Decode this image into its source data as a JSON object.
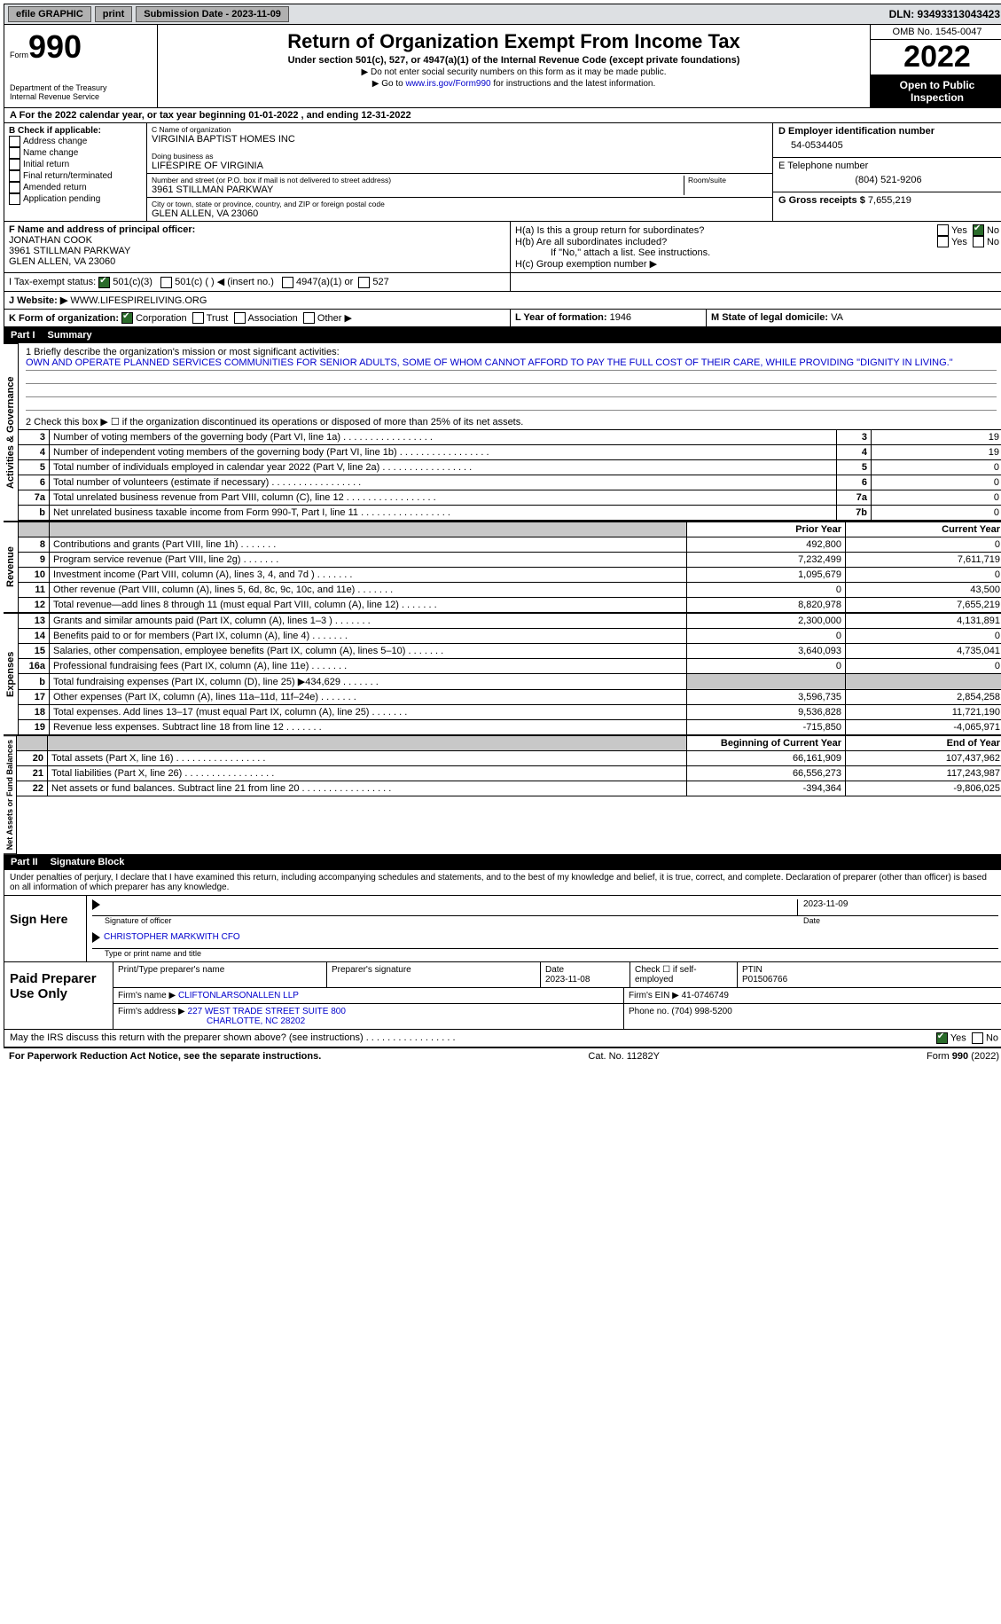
{
  "topbar": {
    "efile": "efile GRAPHIC",
    "print": "print",
    "sub_label": "Submission Date - 2023-11-09",
    "dln": "DLN: 93493313043423"
  },
  "header": {
    "form_word": "Form",
    "form_num": "990",
    "dept": "Department of the Treasury\nInternal Revenue Service",
    "title": "Return of Organization Exempt From Income Tax",
    "sub1": "Under section 501(c), 527, or 4947(a)(1) of the Internal Revenue Code (except private foundations)",
    "sub2": "▶ Do not enter social security numbers on this form as it may be made public.",
    "sub3_pre": "▶ Go to ",
    "sub3_link": "www.irs.gov/Form990",
    "sub3_post": " for instructions and the latest information.",
    "omb": "OMB No. 1545-0047",
    "year": "2022",
    "open": "Open to Public Inspection"
  },
  "rowA": {
    "text_pre": "A  For the 2022 calendar year, or tax year beginning ",
    "begin": "01-01-2022",
    "mid": "   , and ending ",
    "end": "12-31-2022"
  },
  "colB": {
    "hdr": "B Check if applicable:",
    "opts": [
      "Address change",
      "Name change",
      "Initial return",
      "Final return/terminated",
      "Amended return",
      "Application pending"
    ]
  },
  "colC": {
    "name_lbl": "C Name of organization",
    "name": "VIRGINIA BAPTIST HOMES INC",
    "dba_lbl": "Doing business as",
    "dba": "LIFESPIRE OF VIRGINIA",
    "street_lbl": "Number and street (or P.O. box if mail is not delivered to street address)",
    "room_lbl": "Room/suite",
    "street": "3961 STILLMAN PARKWAY",
    "city_lbl": "City or town, state or province, country, and ZIP or foreign postal code",
    "city": "GLEN ALLEN, VA  23060"
  },
  "colD": {
    "ein_lbl": "D Employer identification number",
    "ein": "54-0534405",
    "tel_lbl": "E Telephone number",
    "tel": "(804) 521-9206",
    "gross_lbl": "G Gross receipts $",
    "gross": "7,655,219"
  },
  "rowF": {
    "lbl": "F  Name and address of principal officer:",
    "name": "JONATHAN COOK",
    "addr1": "3961 STILLMAN PARKWAY",
    "addr2": "GLEN ALLEN, VA  23060"
  },
  "rowH": {
    "a_lbl": "H(a)  Is this a group return for subordinates?",
    "b_lbl": "H(b)  Are all subordinates included?",
    "note": "If \"No,\" attach a list. See instructions.",
    "c_lbl": "H(c)  Group exemption number ▶",
    "yes": "Yes",
    "no": "No"
  },
  "rowI": {
    "lbl": "I   Tax-exempt status:",
    "o1": "501(c)(3)",
    "o2": "501(c) (  ) ◀ (insert no.)",
    "o3": "4947(a)(1) or",
    "o4": "527"
  },
  "rowJ": {
    "lbl": "J   Website: ▶",
    "val": "WWW.LIFESPIRELIVING.ORG"
  },
  "rowK": {
    "lbl": "K Form of organization:",
    "o1": "Corporation",
    "o2": "Trust",
    "o3": "Association",
    "o4": "Other ▶",
    "L_lbl": "L  Year of formation:",
    "L_val": "1946",
    "M_lbl": "M  State of legal domicile:",
    "M_val": "VA"
  },
  "part1": {
    "num": "Part I",
    "title": "Summary",
    "q1_lbl": "1   Briefly describe the organization's mission or most significant activities:",
    "q1_val": "OWN AND OPERATE PLANNED SERVICES COMMUNITIES FOR SENIOR ADULTS, SOME OF WHOM CANNOT AFFORD TO PAY THE FULL COST OF THEIR CARE, WHILE PROVIDING \"DIGNITY IN LIVING.\"",
    "q2": "2   Check this box ▶ ☐  if the organization discontinued its operations or disposed of more than 25% of its net assets.",
    "lines_ag": [
      {
        "n": "3",
        "d": "Number of voting members of the governing body (Part VI, line 1a)",
        "b": "3",
        "v": "19"
      },
      {
        "n": "4",
        "d": "Number of independent voting members of the governing body (Part VI, line 1b)",
        "b": "4",
        "v": "19"
      },
      {
        "n": "5",
        "d": "Total number of individuals employed in calendar year 2022 (Part V, line 2a)",
        "b": "5",
        "v": "0"
      },
      {
        "n": "6",
        "d": "Total number of volunteers (estimate if necessary)",
        "b": "6",
        "v": "0"
      },
      {
        "n": "7a",
        "d": "Total unrelated business revenue from Part VIII, column (C), line 12",
        "b": "7a",
        "v": "0"
      },
      {
        "n": "b",
        "d": "Net unrelated business taxable income from Form 990-T, Part I, line 11",
        "b": "7b",
        "v": "0"
      }
    ],
    "col_hdr_prior": "Prior Year",
    "col_hdr_curr": "Current Year",
    "revenue": [
      {
        "n": "8",
        "d": "Contributions and grants (Part VIII, line 1h)",
        "p": "492,800",
        "c": "0"
      },
      {
        "n": "9",
        "d": "Program service revenue (Part VIII, line 2g)",
        "p": "7,232,499",
        "c": "7,611,719"
      },
      {
        "n": "10",
        "d": "Investment income (Part VIII, column (A), lines 3, 4, and 7d )",
        "p": "1,095,679",
        "c": "0"
      },
      {
        "n": "11",
        "d": "Other revenue (Part VIII, column (A), lines 5, 6d, 8c, 9c, 10c, and 11e)",
        "p": "0",
        "c": "43,500"
      },
      {
        "n": "12",
        "d": "Total revenue—add lines 8 through 11 (must equal Part VIII, column (A), line 12)",
        "p": "8,820,978",
        "c": "7,655,219"
      }
    ],
    "expenses": [
      {
        "n": "13",
        "d": "Grants and similar amounts paid (Part IX, column (A), lines 1–3 )",
        "p": "2,300,000",
        "c": "4,131,891"
      },
      {
        "n": "14",
        "d": "Benefits paid to or for members (Part IX, column (A), line 4)",
        "p": "0",
        "c": "0"
      },
      {
        "n": "15",
        "d": "Salaries, other compensation, employee benefits (Part IX, column (A), lines 5–10)",
        "p": "3,640,093",
        "c": "4,735,041"
      },
      {
        "n": "16a",
        "d": "Professional fundraising fees (Part IX, column (A), line 11e)",
        "p": "0",
        "c": "0"
      },
      {
        "n": "b",
        "d": "Total fundraising expenses (Part IX, column (D), line 25) ▶434,629",
        "p": "",
        "c": "",
        "shade": true
      },
      {
        "n": "17",
        "d": "Other expenses (Part IX, column (A), lines 11a–11d, 11f–24e)",
        "p": "3,596,735",
        "c": "2,854,258"
      },
      {
        "n": "18",
        "d": "Total expenses. Add lines 13–17 (must equal Part IX, column (A), line 25)",
        "p": "9,536,828",
        "c": "11,721,190"
      },
      {
        "n": "19",
        "d": "Revenue less expenses. Subtract line 18 from line 12",
        "p": "-715,850",
        "c": "-4,065,971"
      }
    ],
    "col_hdr_begin": "Beginning of Current Year",
    "col_hdr_end": "End of Year",
    "net": [
      {
        "n": "20",
        "d": "Total assets (Part X, line 16)",
        "p": "66,161,909",
        "c": "107,437,962"
      },
      {
        "n": "21",
        "d": "Total liabilities (Part X, line 26)",
        "p": "66,556,273",
        "c": "117,243,987"
      },
      {
        "n": "22",
        "d": "Net assets or fund balances. Subtract line 21 from line 20",
        "p": "-394,364",
        "c": "-9,806,025"
      }
    ],
    "side_ag": "Activities & Governance",
    "side_rev": "Revenue",
    "side_exp": "Expenses",
    "side_net": "Net Assets or Fund Balances"
  },
  "part2": {
    "num": "Part II",
    "title": "Signature Block",
    "decl": "Under penalties of perjury, I declare that I have examined this return, including accompanying schedules and statements, and to the best of my knowledge and belief, it is true, correct, and complete. Declaration of preparer (other than officer) is based on all information of which preparer has any knowledge.",
    "sign_here": "Sign Here",
    "sig_officer": "Signature of officer",
    "sig_date": "2023-11-09",
    "date_lbl": "Date",
    "officer_name": "CHRISTOPHER MARKWITH CFO",
    "officer_title_lbl": "Type or print name and title"
  },
  "prep": {
    "hdr": "Paid Preparer Use Only",
    "c1": "Print/Type preparer's name",
    "c2": "Preparer's signature",
    "c3_lbl": "Date",
    "c3_val": "2023-11-08",
    "c4": "Check ☐ if self-employed",
    "c5_lbl": "PTIN",
    "c5_val": "P01506766",
    "firm_lbl": "Firm's name    ▶",
    "firm_val": "CLIFTONLARSONALLEN LLP",
    "ein_lbl": "Firm's EIN ▶",
    "ein_val": "41-0746749",
    "addr_lbl": "Firm's address ▶",
    "addr_val1": "227 WEST TRADE STREET SUITE 800",
    "addr_val2": "CHARLOTTE, NC  28202",
    "phone_lbl": "Phone no.",
    "phone_val": "(704) 998-5200"
  },
  "footer": {
    "discuss": "May the IRS discuss this return with the preparer shown above? (see instructions)",
    "yes": "Yes",
    "no": "No",
    "pra": "For Paperwork Reduction Act Notice, see the separate instructions.",
    "cat": "Cat. No. 11282Y",
    "form": "Form 990 (2022)"
  }
}
